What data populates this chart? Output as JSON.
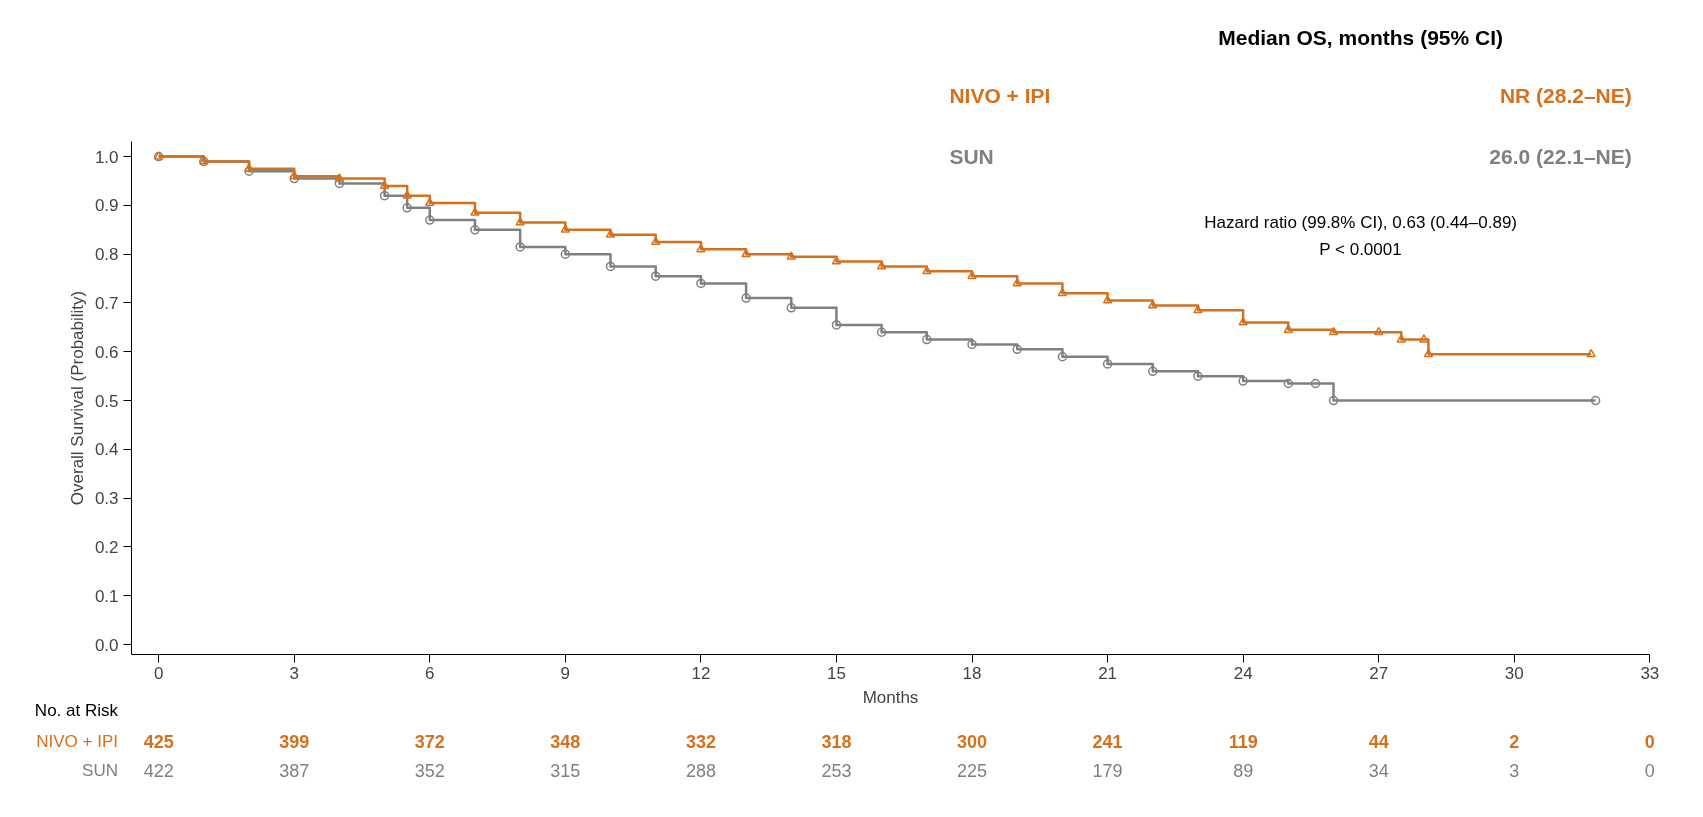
{
  "chart_data": {
    "type": "step",
    "xlabel": "Months",
    "ylabel": "Overall Survival (Probability)",
    "xlim": [
      -0.6,
      33
    ],
    "ylim": [
      -0.02,
      1.03
    ],
    "xticks": [
      0,
      3,
      6,
      9,
      12,
      15,
      18,
      21,
      24,
      27,
      30,
      33
    ],
    "yticks": [
      {
        "value": 0,
        "label": "0.0"
      },
      0.1,
      0.2,
      0.3,
      0.4,
      0.5,
      0.6,
      0.7,
      0.8,
      0.9,
      {
        "value": 1,
        "label": "1.0"
      }
    ],
    "grid": false,
    "line_style": "solid",
    "series": [
      {
        "name": "NIVO + IPI",
        "color": "#d4711f",
        "marker": "triangle",
        "x": [
          0,
          1,
          2,
          3,
          4,
          5,
          5.5,
          6,
          7,
          8,
          9,
          10,
          11,
          12,
          13,
          14,
          15,
          16,
          17,
          18,
          19,
          20,
          21,
          22,
          23,
          24,
          25,
          26,
          27,
          27.5,
          28,
          28.1,
          31.7
        ],
        "values": [
          1.0,
          0.99,
          0.975,
          0.96,
          0.955,
          0.94,
          0.92,
          0.905,
          0.885,
          0.865,
          0.85,
          0.84,
          0.825,
          0.81,
          0.8,
          0.795,
          0.785,
          0.775,
          0.765,
          0.755,
          0.74,
          0.72,
          0.705,
          0.695,
          0.685,
          0.66,
          0.645,
          0.64,
          0.64,
          0.625,
          0.625,
          0.595,
          0.595
        ]
      },
      {
        "name": "SUN",
        "color": "#808080",
        "marker": "circle",
        "x": [
          0,
          1,
          2,
          3,
          4,
          5,
          5.5,
          6,
          7,
          8,
          9,
          10,
          11,
          12,
          13,
          14,
          15,
          16,
          17,
          18,
          19,
          20,
          21,
          22,
          23,
          24,
          25,
          25.6,
          26,
          31.8
        ],
        "values": [
          1.0,
          0.99,
          0.97,
          0.955,
          0.945,
          0.92,
          0.895,
          0.87,
          0.85,
          0.815,
          0.8,
          0.775,
          0.755,
          0.74,
          0.71,
          0.69,
          0.655,
          0.64,
          0.625,
          0.615,
          0.605,
          0.59,
          0.575,
          0.56,
          0.55,
          0.54,
          0.535,
          0.535,
          0.5,
          0.5
        ]
      }
    ],
    "annotations": [
      "Median OS, months (95% CI)",
      "NR (28.2–NE)",
      "26.0 (22.1–NE)",
      "Hazard ratio (99.8% CI), 0.63 (0.44–0.89)",
      "P < 0.0001",
      "No. at Risk",
      "425",
      "399",
      "372",
      "348",
      "332",
      "318",
      "300",
      "241",
      "119",
      "44",
      "2",
      "0",
      "422",
      "387",
      "352",
      "315",
      "288",
      "253",
      "225",
      "179",
      "89",
      "34",
      "3",
      "0"
    ]
  }
}
